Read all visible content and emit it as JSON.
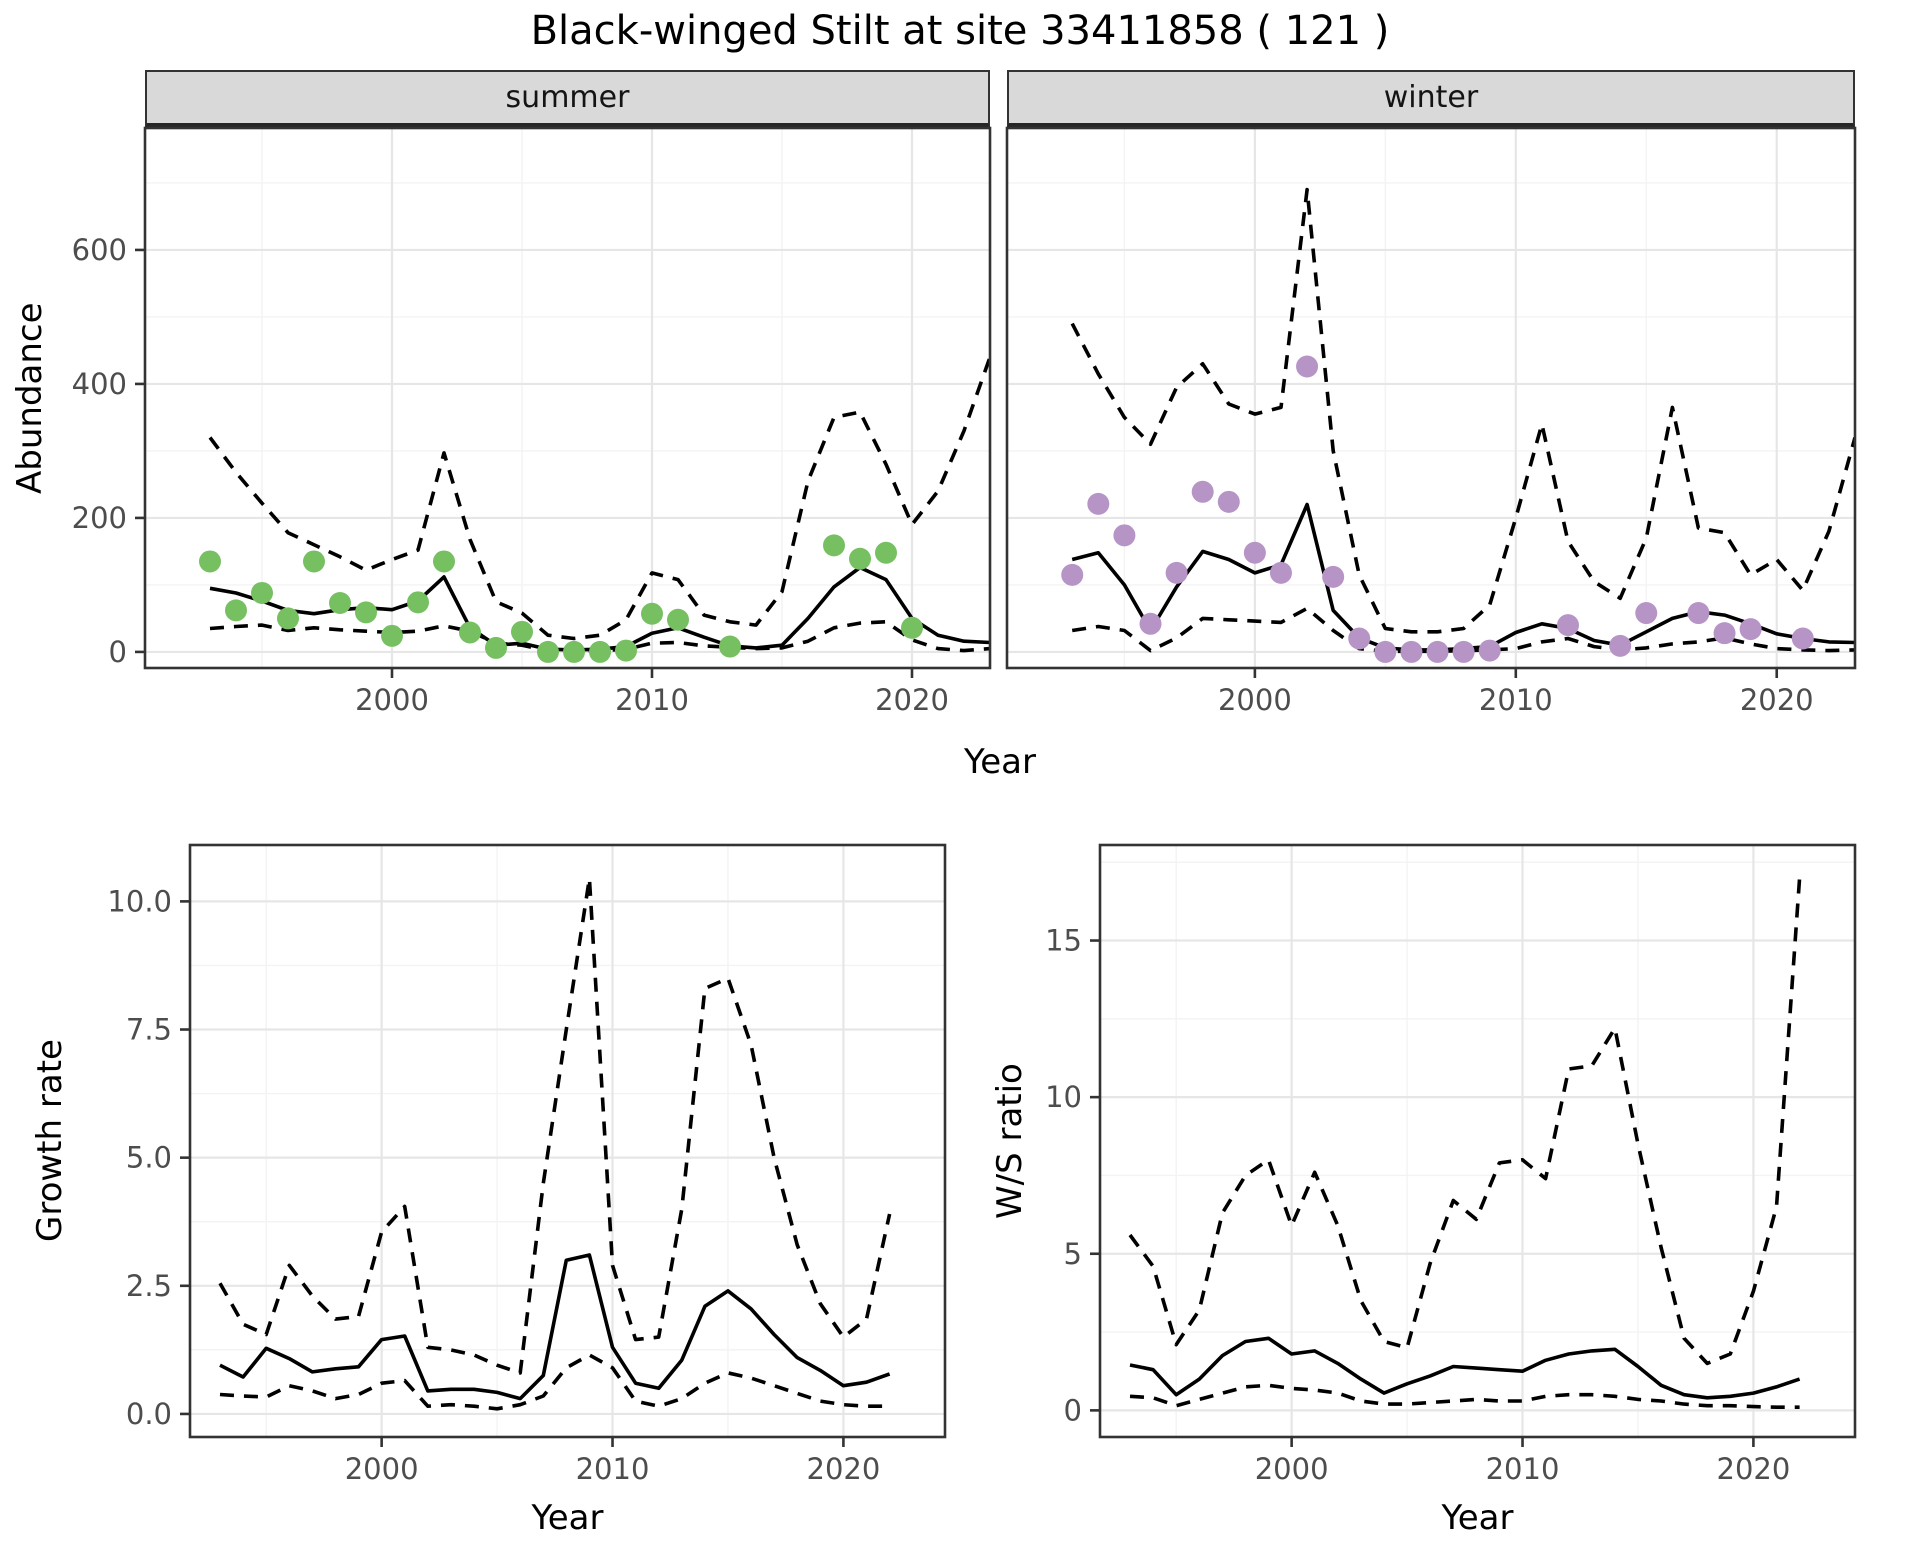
{
  "title": "Black-winged Stilt at site 33411858 ( 121 )",
  "facets": {
    "summer": "summer",
    "winter": "winter"
  },
  "axes": {
    "abundance_label": "Abundance",
    "year_label": "Year",
    "growth_label": "Growth rate",
    "ws_label": "W/S ratio"
  },
  "colors": {
    "summer_points": "#76c062",
    "winter_points": "#b694c6",
    "line": "#000000",
    "grid_major": "#e6e6e6",
    "grid_minor": "#f3f3f3",
    "strip_bg": "#d9d9d9",
    "panel_border": "#333333",
    "tick_text": "#4d4d4d"
  },
  "chart_data": [
    {
      "id": "summer",
      "type": "line",
      "facet": "summer",
      "xlabel": "Year",
      "ylabel": "Abundance",
      "xlim": [
        1990.5,
        2023.0
      ],
      "ylim": [
        -24,
        782
      ],
      "xticks": [
        2000,
        2010,
        2020
      ],
      "xtick_labels": [
        "2000",
        "2010",
        "2020"
      ],
      "xminor": [
        1995,
        2005,
        2015
      ],
      "yticks": [
        0,
        200,
        400,
        600
      ],
      "ytick_labels": [
        "0",
        "200",
        "400",
        "600"
      ],
      "yminor": [
        100,
        300,
        500,
        700
      ],
      "years": [
        1993,
        1994,
        1995,
        1996,
        1997,
        1998,
        1999,
        2000,
        2001,
        2002,
        2003,
        2004,
        2005,
        2006,
        2007,
        2008,
        2009,
        2010,
        2011,
        2012,
        2013,
        2014,
        2015,
        2016,
        2017,
        2018,
        2019,
        2020,
        2021,
        2022,
        2023
      ],
      "series": [
        {
          "name": "upper_ci",
          "style": "dashed",
          "y": [
            320,
            268,
            222,
            178,
            160,
            142,
            122,
            138,
            152,
            297,
            168,
            75,
            58,
            25,
            20,
            25,
            48,
            118,
            108,
            55,
            45,
            40,
            90,
            255,
            350,
            358,
            280,
            190,
            240,
            330,
            440
          ]
        },
        {
          "name": "lower_ci",
          "style": "dashed",
          "y": [
            35,
            38,
            40,
            32,
            36,
            33,
            31,
            29,
            31,
            39,
            31,
            13,
            10,
            2,
            2,
            2,
            4,
            13,
            14,
            9,
            7,
            5,
            6,
            16,
            36,
            43,
            45,
            18,
            5,
            2,
            5
          ]
        },
        {
          "name": "fitted",
          "style": "solid",
          "y": [
            95,
            88,
            76,
            62,
            57,
            63,
            66,
            63,
            76,
            112,
            36,
            10,
            13,
            4,
            3,
            4,
            8,
            28,
            36,
            22,
            9,
            6,
            10,
            50,
            97,
            126,
            108,
            50,
            25,
            16,
            14
          ]
        },
        {
          "name": "observed",
          "style": "points",
          "color": "#76c062",
          "x": [
            1993,
            1994,
            1995,
            1996,
            1997,
            1998,
            1999,
            2000,
            2001,
            2002,
            2003,
            2004,
            2005,
            2006,
            2007,
            2008,
            2009,
            2010,
            2011,
            2013,
            2017,
            2018,
            2019,
            2020
          ],
          "y": [
            135,
            62,
            88,
            50,
            135,
            73,
            59,
            24,
            74,
            135,
            29,
            6,
            30,
            0,
            0,
            0,
            2,
            57,
            48,
            8,
            159,
            139,
            148,
            36
          ]
        }
      ]
    },
    {
      "id": "winter",
      "type": "line",
      "facet": "winter",
      "xlabel": "Year",
      "ylabel": "Abundance",
      "xlim": [
        1990.5,
        2023.0
      ],
      "ylim": [
        -24,
        782
      ],
      "xticks": [
        2000,
        2010,
        2020
      ],
      "xtick_labels": [
        "2000",
        "2010",
        "2020"
      ],
      "xminor": [
        1995,
        2005,
        2015
      ],
      "yticks": [
        0,
        200,
        400,
        600
      ],
      "ytick_labels": [
        "0",
        "200",
        "400",
        "600"
      ],
      "yminor": [
        100,
        300,
        500,
        700
      ],
      "years": [
        1993,
        1994,
        1995,
        1996,
        1997,
        1998,
        1999,
        2000,
        2001,
        2002,
        2003,
        2004,
        2005,
        2006,
        2007,
        2008,
        2009,
        2010,
        2011,
        2012,
        2013,
        2014,
        2015,
        2016,
        2017,
        2018,
        2019,
        2020,
        2021,
        2022,
        2023
      ],
      "series": [
        {
          "name": "upper_ci",
          "style": "dashed",
          "y": [
            490,
            415,
            350,
            310,
            395,
            430,
            370,
            355,
            365,
            690,
            300,
            115,
            35,
            30,
            30,
            35,
            70,
            200,
            340,
            165,
            105,
            80,
            170,
            365,
            185,
            178,
            115,
            138,
            92,
            180,
            320
          ]
        },
        {
          "name": "lower_ci",
          "style": "dashed",
          "y": [
            32,
            38,
            32,
            2,
            21,
            50,
            48,
            46,
            44,
            65,
            32,
            5,
            1,
            1,
            1,
            2,
            3,
            5,
            15,
            20,
            8,
            3,
            6,
            12,
            15,
            21,
            12,
            5,
            3,
            2,
            3
          ]
        },
        {
          "name": "fitted",
          "style": "solid",
          "y": [
            138,
            148,
            100,
            32,
            97,
            150,
            138,
            118,
            130,
            220,
            62,
            21,
            6,
            3,
            3,
            5,
            8,
            29,
            42,
            35,
            17,
            10,
            30,
            50,
            60,
            55,
            42,
            27,
            20,
            15,
            14
          ]
        },
        {
          "name": "observed",
          "style": "points",
          "color": "#b694c6",
          "x": [
            1993,
            1994,
            1995,
            1996,
            1997,
            1998,
            1999,
            2000,
            2001,
            2002,
            2003,
            2004,
            2005,
            2006,
            2007,
            2008,
            2009,
            2012,
            2014,
            2015,
            2017,
            2018,
            2019,
            2021
          ],
          "y": [
            115,
            221,
            174,
            42,
            118,
            239,
            224,
            148,
            118,
            426,
            112,
            20,
            0,
            0,
            0,
            0,
            2,
            40,
            9,
            58,
            58,
            28,
            34,
            20
          ]
        }
      ]
    },
    {
      "id": "growth",
      "type": "line",
      "facet": "",
      "xlabel": "Year",
      "ylabel": "Growth rate",
      "xlim": [
        1991.7,
        2024.4
      ],
      "ylim": [
        -0.45,
        11.1
      ],
      "xticks": [
        2000,
        2010,
        2020
      ],
      "xtick_labels": [
        "2000",
        "2010",
        "2020"
      ],
      "xminor": [
        1995,
        2005,
        2015
      ],
      "yticks": [
        0,
        2.5,
        5,
        7.5,
        10
      ],
      "ytick_labels": [
        "0.0",
        "2.5",
        "5.0",
        "7.5",
        "10.0"
      ],
      "yminor": [
        1.25,
        3.75,
        6.25,
        8.75
      ],
      "years": [
        1993,
        1994,
        1995,
        1996,
        1997,
        1998,
        1999,
        2000,
        2001,
        2002,
        2003,
        2004,
        2005,
        2006,
        2007,
        2008,
        2009,
        2010,
        2011,
        2012,
        2013,
        2014,
        2015,
        2016,
        2017,
        2018,
        2019,
        2020,
        2021,
        2022
      ],
      "series": [
        {
          "name": "upper_ci",
          "style": "dashed",
          "y": [
            2.55,
            1.75,
            1.55,
            2.9,
            2.3,
            1.85,
            1.9,
            3.55,
            4.05,
            1.3,
            1.25,
            1.15,
            0.95,
            0.8,
            4.5,
            7.5,
            10.45,
            2.9,
            1.45,
            1.5,
            4.0,
            8.3,
            8.5,
            7.2,
            5.0,
            3.3,
            2.15,
            1.5,
            1.85,
            3.9
          ]
        },
        {
          "name": "lower_ci",
          "style": "dashed",
          "y": [
            0.38,
            0.35,
            0.33,
            0.55,
            0.45,
            0.3,
            0.38,
            0.6,
            0.65,
            0.15,
            0.18,
            0.15,
            0.1,
            0.18,
            0.35,
            0.9,
            1.15,
            0.9,
            0.25,
            0.15,
            0.3,
            0.6,
            0.8,
            0.7,
            0.55,
            0.4,
            0.25,
            0.18,
            0.15,
            0.15
          ]
        },
        {
          "name": "fitted",
          "style": "solid",
          "y": [
            0.95,
            0.72,
            1.28,
            1.08,
            0.82,
            0.88,
            0.92,
            1.45,
            1.52,
            0.45,
            0.48,
            0.48,
            0.42,
            0.3,
            0.75,
            3.0,
            3.1,
            1.3,
            0.6,
            0.5,
            1.05,
            2.1,
            2.4,
            2.05,
            1.55,
            1.1,
            0.85,
            0.55,
            0.62,
            0.78
          ]
        }
      ]
    },
    {
      "id": "ws",
      "type": "line",
      "facet": "",
      "xlabel": "Year",
      "ylabel": "W/S ratio",
      "xlim": [
        1991.7,
        2024.4
      ],
      "ylim": [
        -0.85,
        18.05
      ],
      "xticks": [
        2000,
        2010,
        2020
      ],
      "xtick_labels": [
        "2000",
        "2010",
        "2020"
      ],
      "xminor": [
        1995,
        2005,
        2015
      ],
      "yticks": [
        0,
        5,
        10,
        15
      ],
      "ytick_labels": [
        "0",
        "5",
        "10",
        "15"
      ],
      "yminor": [
        2.5,
        7.5,
        12.5,
        17.5
      ],
      "years": [
        1993,
        1994,
        1995,
        1996,
        1997,
        1998,
        1999,
        2000,
        2001,
        2002,
        2003,
        2004,
        2005,
        2006,
        2007,
        2008,
        2009,
        2010,
        2011,
        2012,
        2013,
        2014,
        2015,
        2016,
        2017,
        2018,
        2019,
        2020,
        2021,
        2022
      ],
      "series": [
        {
          "name": "upper_ci",
          "style": "dashed",
          "y": [
            5.6,
            4.6,
            2.1,
            3.2,
            6.3,
            7.5,
            8.0,
            5.9,
            7.6,
            5.9,
            3.5,
            2.2,
            2.0,
            4.7,
            6.7,
            6.1,
            7.9,
            8.0,
            7.4,
            10.9,
            11.0,
            12.2,
            8.5,
            5.2,
            2.3,
            1.5,
            1.8,
            3.8,
            6.5,
            17.0
          ]
        },
        {
          "name": "lower_ci",
          "style": "dashed",
          "y": [
            0.45,
            0.4,
            0.15,
            0.35,
            0.55,
            0.75,
            0.8,
            0.7,
            0.65,
            0.55,
            0.3,
            0.2,
            0.2,
            0.25,
            0.3,
            0.35,
            0.3,
            0.3,
            0.45,
            0.5,
            0.5,
            0.45,
            0.35,
            0.3,
            0.2,
            0.15,
            0.15,
            0.12,
            0.1,
            0.1
          ]
        },
        {
          "name": "fitted",
          "style": "solid",
          "y": [
            1.45,
            1.3,
            0.5,
            1.0,
            1.75,
            2.2,
            2.3,
            1.8,
            1.9,
            1.5,
            1.0,
            0.55,
            0.85,
            1.1,
            1.4,
            1.35,
            1.3,
            1.25,
            1.6,
            1.8,
            1.9,
            1.95,
            1.4,
            0.8,
            0.5,
            0.4,
            0.45,
            0.55,
            0.75,
            1.0
          ]
        }
      ]
    }
  ]
}
